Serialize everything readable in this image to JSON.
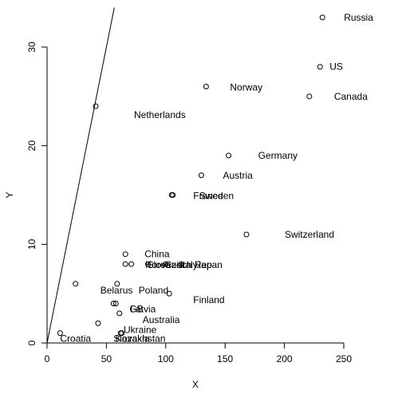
{
  "chart_data": {
    "type": "scatter",
    "title": "",
    "xlabel": "X",
    "ylabel": "Y",
    "xlim": [
      0,
      250
    ],
    "ylim": [
      0,
      30
    ],
    "x_ticks": [
      0,
      50,
      100,
      150,
      200,
      250
    ],
    "y_ticks": [
      0,
      10,
      20,
      30
    ],
    "grid": false,
    "reference_line": {
      "intercept": 0,
      "slope": 0.6
    },
    "points": [
      {
        "x": 232,
        "y": 33,
        "label": "Russia"
      },
      {
        "x": 230,
        "y": 28,
        "label": "US"
      },
      {
        "x": 221,
        "y": 25,
        "label": "Canada"
      },
      {
        "x": 134,
        "y": 26,
        "label": "Norway"
      },
      {
        "x": 41,
        "y": 24,
        "label": "Netherlands"
      },
      {
        "x": 153,
        "y": 19,
        "label": "Germany"
      },
      {
        "x": 130,
        "y": 17,
        "label": "Austria"
      },
      {
        "x": 105,
        "y": 15,
        "label": "France"
      },
      {
        "x": 106,
        "y": 15,
        "label": "Sweden"
      },
      {
        "x": 168,
        "y": 11,
        "label": "Switzerland"
      },
      {
        "x": 66,
        "y": 9,
        "label": "China"
      },
      {
        "x": 66,
        "y": 8,
        "label": "Korea"
      },
      {
        "x": 71,
        "y": 8,
        "label": "Slovenia"
      },
      {
        "x": 85,
        "y": 8,
        "label": "Czech Rep"
      },
      {
        "x": 100,
        "y": 8,
        "label": "Italy"
      },
      {
        "x": 113,
        "y": 8,
        "label": "Japan"
      },
      {
        "x": 24,
        "y": 6,
        "label": "Belarus"
      },
      {
        "x": 59,
        "y": 6,
        "label": "Poland"
      },
      {
        "x": 103,
        "y": 5,
        "label": "Finland"
      },
      {
        "x": 56,
        "y": 4,
        "label": "GB"
      },
      {
        "x": 58,
        "y": 4,
        "label": "Latvia"
      },
      {
        "x": 61,
        "y": 3,
        "label": "Australia"
      },
      {
        "x": 43,
        "y": 2,
        "label": "Ukraine"
      },
      {
        "x": 11,
        "y": 1,
        "label": "Croatia"
      },
      {
        "x": 62,
        "y": 1,
        "label": "Slovakia"
      },
      {
        "x": 63,
        "y": 1,
        "label": "Kazakhstan"
      }
    ]
  }
}
